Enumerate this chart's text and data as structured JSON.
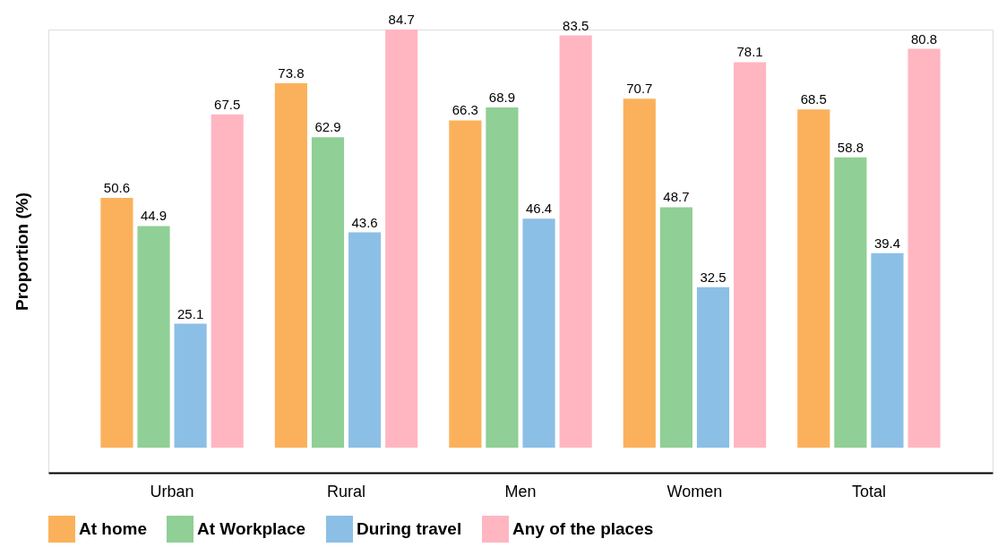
{
  "chart_data": {
    "type": "bar",
    "ylabel": "Proportion (%)",
    "categories": [
      "Urban",
      "Rural",
      "Men",
      "Women",
      "Total"
    ],
    "series": [
      {
        "name": "At home",
        "color": "#fbb15b",
        "values": [
          50.6,
          73.8,
          66.3,
          70.7,
          68.5
        ]
      },
      {
        "name": "At Workplace",
        "color": "#90cf95",
        "values": [
          44.9,
          62.9,
          68.9,
          48.7,
          58.8
        ]
      },
      {
        "name": "During travel",
        "color": "#8cbfe6",
        "values": [
          25.1,
          43.6,
          46.4,
          32.5,
          39.4
        ]
      },
      {
        "name": "Any of the places",
        "color": "#ffb6c1",
        "values": [
          67.5,
          84.7,
          83.5,
          78.1,
          80.8
        ]
      }
    ],
    "data_labels": true,
    "legend": "bottom",
    "grid": false,
    "tick_labels": "x"
  }
}
